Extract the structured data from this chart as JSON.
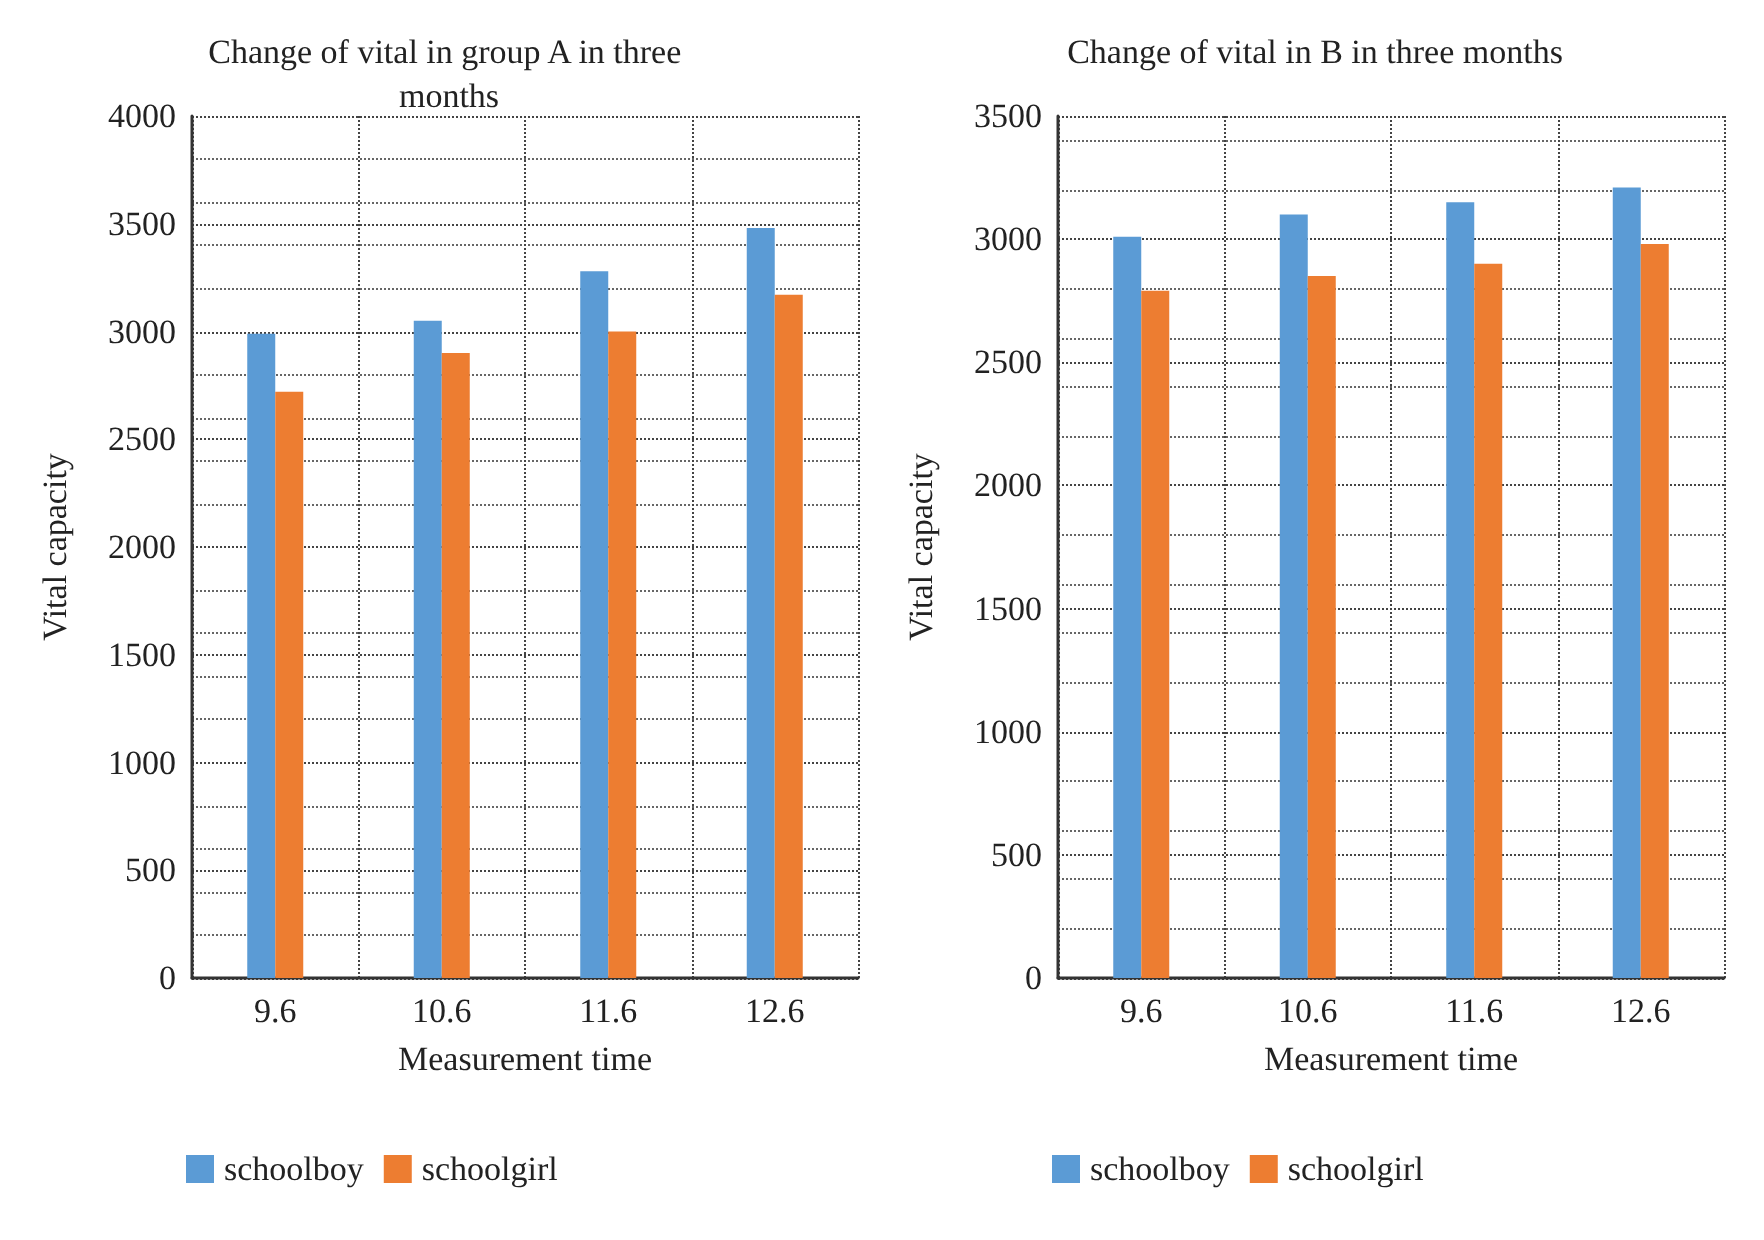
{
  "chart_data": [
    {
      "type": "bar",
      "title": "Change of vital in group A in three months",
      "xlabel": "Measurement time",
      "ylabel": "Vital capacity",
      "categories": [
        "9.6",
        "10.6",
        "11.6",
        "12.6"
      ],
      "series": [
        {
          "name": "schoolboy",
          "color": "#5b9bd5",
          "values": [
            2990,
            3050,
            3280,
            3480
          ]
        },
        {
          "name": "schoolgirl",
          "color": "#ed7d31",
          "values": [
            2720,
            2900,
            3000,
            3170
          ]
        }
      ],
      "ylim": [
        0,
        4000
      ],
      "yticks": [
        0,
        500,
        1000,
        1500,
        2000,
        2500,
        3000,
        3500,
        4000
      ],
      "grid": true,
      "legend": "bottom left"
    },
    {
      "type": "bar",
      "title": "Change of vital in B in three months",
      "xlabel": "Measurement time",
      "ylabel": "Vital capacity",
      "categories": [
        "9.6",
        "10.6",
        "11.6",
        "12.6"
      ],
      "series": [
        {
          "name": "schoolboy",
          "color": "#5b9bd5",
          "values": [
            3010,
            3100,
            3150,
            3210
          ]
        },
        {
          "name": "schoolgirl",
          "color": "#ed7d31",
          "values": [
            2790,
            2850,
            2900,
            2980
          ]
        }
      ],
      "ylim": [
        0,
        3500
      ],
      "yticks": [
        0,
        500,
        1000,
        1500,
        2000,
        2500,
        3000,
        3500
      ],
      "grid": true,
      "legend": "bottom left"
    }
  ]
}
